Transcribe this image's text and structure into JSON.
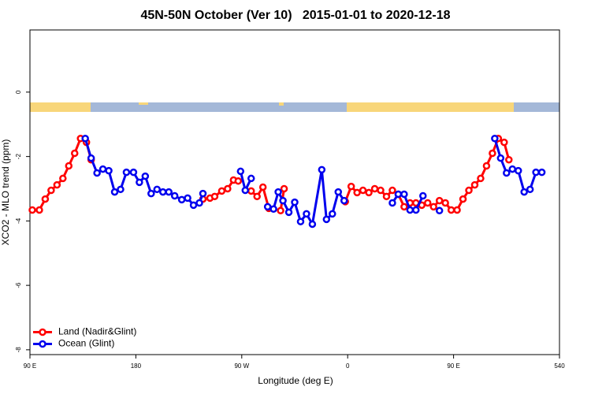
{
  "chart_data": {
    "type": "line",
    "title": "45N-50N October (Ver 10)   2015-01-01 to 2020-12-18",
    "x_label": "Longitude (deg E)",
    "y_label": "XCO2 - MLO trend (ppm)",
    "xlim": [
      90,
      540
    ],
    "ylim": [
      -8.15,
      1.93
    ],
    "xticks": [
      {
        "value": 90,
        "label": "90 E"
      },
      180,
      {
        "value": 270,
        "label": "90 W"
      },
      {
        "value": 360,
        "label": "0"
      },
      {
        "value": 450,
        "label": "90 E"
      },
      540
    ],
    "yticks": [
      -8,
      -6,
      -4,
      -2,
      0
    ],
    "legend": "bottomleft",
    "series": [
      {
        "name": "Land (Nadir&Glint)",
        "color": "#ff0000",
        "x": [
          92,
          98,
          103,
          108,
          113,
          118,
          123,
          128,
          133,
          138,
          142,
          190,
          237,
          243,
          247,
          253,
          258,
          263,
          267,
          272,
          278,
          283,
          288,
          293,
          298,
          303,
          306,
          330,
          358,
          363,
          368,
          373,
          378,
          383,
          388,
          393,
          398,
          403,
          408,
          413,
          418,
          423,
          428,
          433,
          438,
          443,
          448,
          453,
          458,
          463,
          468,
          473,
          478,
          483,
          488,
          493,
          497
        ],
        "values": [
          -3.66,
          -3.66,
          -3.32,
          -3.05,
          -2.88,
          -2.68,
          -2.29,
          -1.9,
          -1.44,
          -1.56,
          -2.1,
          null,
          -3.32,
          -3.29,
          -3.24,
          -3.07,
          -3.0,
          -2.73,
          -2.76,
          null,
          -3.07,
          -3.24,
          -2.95,
          -3.61,
          null,
          -3.68,
          -3.0,
          null,
          -3.4,
          -2.93,
          -3.12,
          -3.05,
          -3.12,
          -3.0,
          -3.05,
          -3.24,
          -3.05,
          -3.17,
          -3.56,
          -3.44,
          -3.44,
          -3.51,
          -3.44,
          -3.56,
          -3.37,
          -3.44,
          -3.66,
          -3.66,
          -3.32,
          -3.05,
          -2.88,
          -2.68,
          -2.29,
          -1.9,
          -1.44,
          -1.56,
          -2.1
        ]
      },
      {
        "name": "Ocean (Glint)",
        "color": "#0000ee",
        "x": [
          137,
          142,
          147,
          152,
          157,
          162,
          167,
          172,
          178,
          183,
          188,
          193,
          198,
          203,
          208,
          213,
          219,
          224,
          229,
          234,
          237,
          253,
          269,
          273,
          278,
          285,
          292,
          297,
          301,
          305,
          310,
          315,
          320,
          325,
          330,
          338,
          342,
          347,
          352,
          357,
          378,
          398,
          403,
          408,
          413,
          418,
          424,
          431,
          438,
          461,
          485,
          490,
          495,
          500,
          505,
          510,
          515,
          520,
          525
        ],
        "values": [
          -1.44,
          -2.05,
          -2.51,
          -2.39,
          -2.44,
          -3.1,
          -3.02,
          -2.49,
          -2.49,
          -2.8,
          -2.61,
          -3.15,
          -3.02,
          -3.1,
          -3.1,
          -3.22,
          -3.34,
          -3.29,
          -3.51,
          -3.44,
          -3.15,
          null,
          -2.46,
          -3.05,
          -2.68,
          null,
          -3.56,
          -3.63,
          -3.1,
          -3.37,
          -3.73,
          -3.42,
          -4.02,
          -3.78,
          -4.1,
          -2.41,
          -3.95,
          -3.78,
          -3.1,
          -3.37,
          null,
          -3.44,
          -3.17,
          -3.17,
          -3.66,
          -3.66,
          -3.22,
          null,
          -3.68,
          null,
          -1.44,
          -2.05,
          -2.51,
          -2.39,
          -2.44,
          -3.1,
          -3.02,
          -2.49,
          -2.49
        ]
      }
    ]
  }
}
